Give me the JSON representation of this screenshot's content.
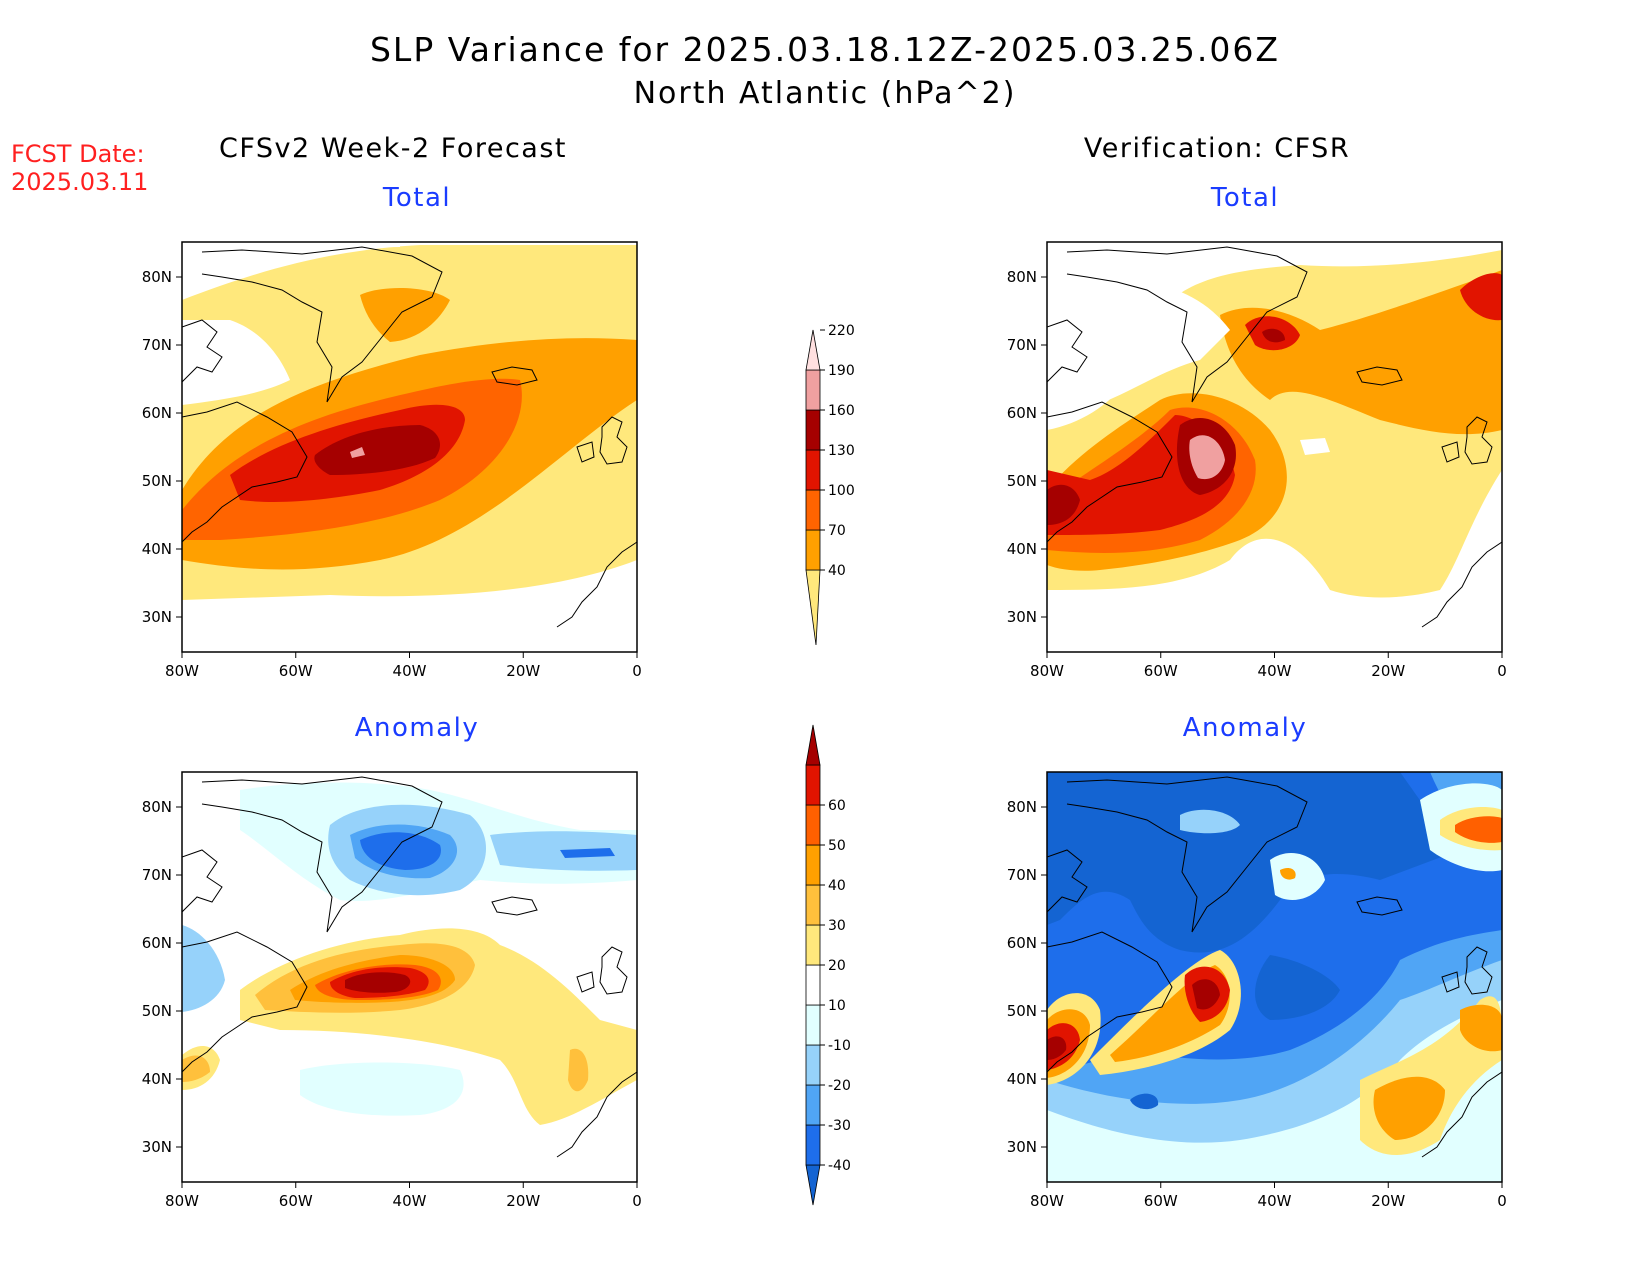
{
  "title": {
    "line1": "SLP Variance for 2025.03.18.12Z-2025.03.25.06Z",
    "line2": "North Atlantic (hPa^2)"
  },
  "fcst_date": {
    "label": "FCST Date:",
    "value": "2025.03.11"
  },
  "columns": {
    "left": "CFSv2 Week-2 Forecast",
    "right": "Verification: CFSR"
  },
  "panels": {
    "forecast_total": "Total",
    "forecast_anomaly": "Anomaly",
    "verification_total": "Total",
    "verification_anomaly": "Anomaly"
  },
  "axes": {
    "lon_labels": [
      "80W",
      "60W",
      "40W",
      "20W",
      "0"
    ],
    "lat_labels": [
      "80N",
      "70N",
      "60N",
      "50N",
      "40N",
      "30N"
    ]
  },
  "colorbar_total": {
    "levels": [
      "40",
      "70",
      "100",
      "130",
      "160",
      "190",
      "220"
    ],
    "colors": [
      "#ffe87c",
      "#ffa000",
      "#ff6400",
      "#e11400",
      "#a50000",
      "#f0a0a0",
      "#ffe0e0"
    ]
  },
  "colorbar_anomaly": {
    "levels": [
      "-40",
      "-30",
      "-20",
      "-10",
      "10",
      "20",
      "30",
      "40",
      "50",
      "60"
    ],
    "colors": [
      "#1464d2",
      "#1e6eeb",
      "#50a5f5",
      "#96d2fa",
      "#e1ffff",
      "#ffffff",
      "#ffe87c",
      "#ffc03c",
      "#ffa000",
      "#ff6000",
      "#e11400",
      "#a50000"
    ]
  },
  "coast_color": "#000000"
}
